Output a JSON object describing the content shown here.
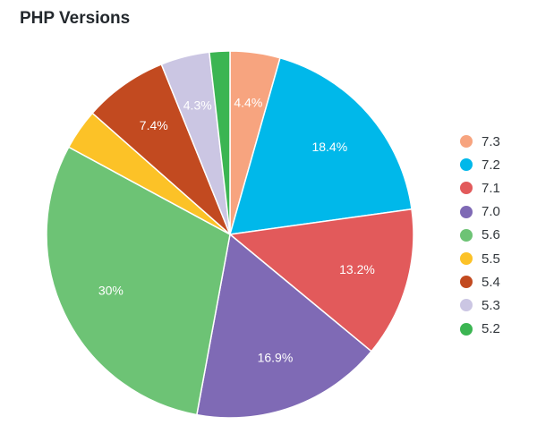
{
  "chart_data": {
    "type": "pie",
    "title": "PHP Versions",
    "legend_position": "right",
    "slices": [
      {
        "label": "7.3",
        "value": 4.4,
        "color": "#f7a47f",
        "data_label": "4.4%"
      },
      {
        "label": "7.2",
        "value": 18.4,
        "color": "#00b8ea",
        "data_label": "18.4%"
      },
      {
        "label": "7.1",
        "value": 13.2,
        "color": "#e25a5b",
        "data_label": "13.2%"
      },
      {
        "label": "7.0",
        "value": 16.9,
        "color": "#7f6ab5",
        "data_label": "16.9%"
      },
      {
        "label": "5.6",
        "value": 30.0,
        "color": "#6dc375",
        "data_label": "30%"
      },
      {
        "label": "5.5",
        "value": 3.6,
        "color": "#fcc227",
        "data_label": ""
      },
      {
        "label": "5.4",
        "value": 7.4,
        "color": "#c24a20",
        "data_label": "7.4%"
      },
      {
        "label": "5.3",
        "value": 4.3,
        "color": "#cbc6e3",
        "data_label": "4.3%"
      },
      {
        "label": "5.2",
        "value": 1.8,
        "color": "#3bb552",
        "data_label": ""
      }
    ]
  }
}
